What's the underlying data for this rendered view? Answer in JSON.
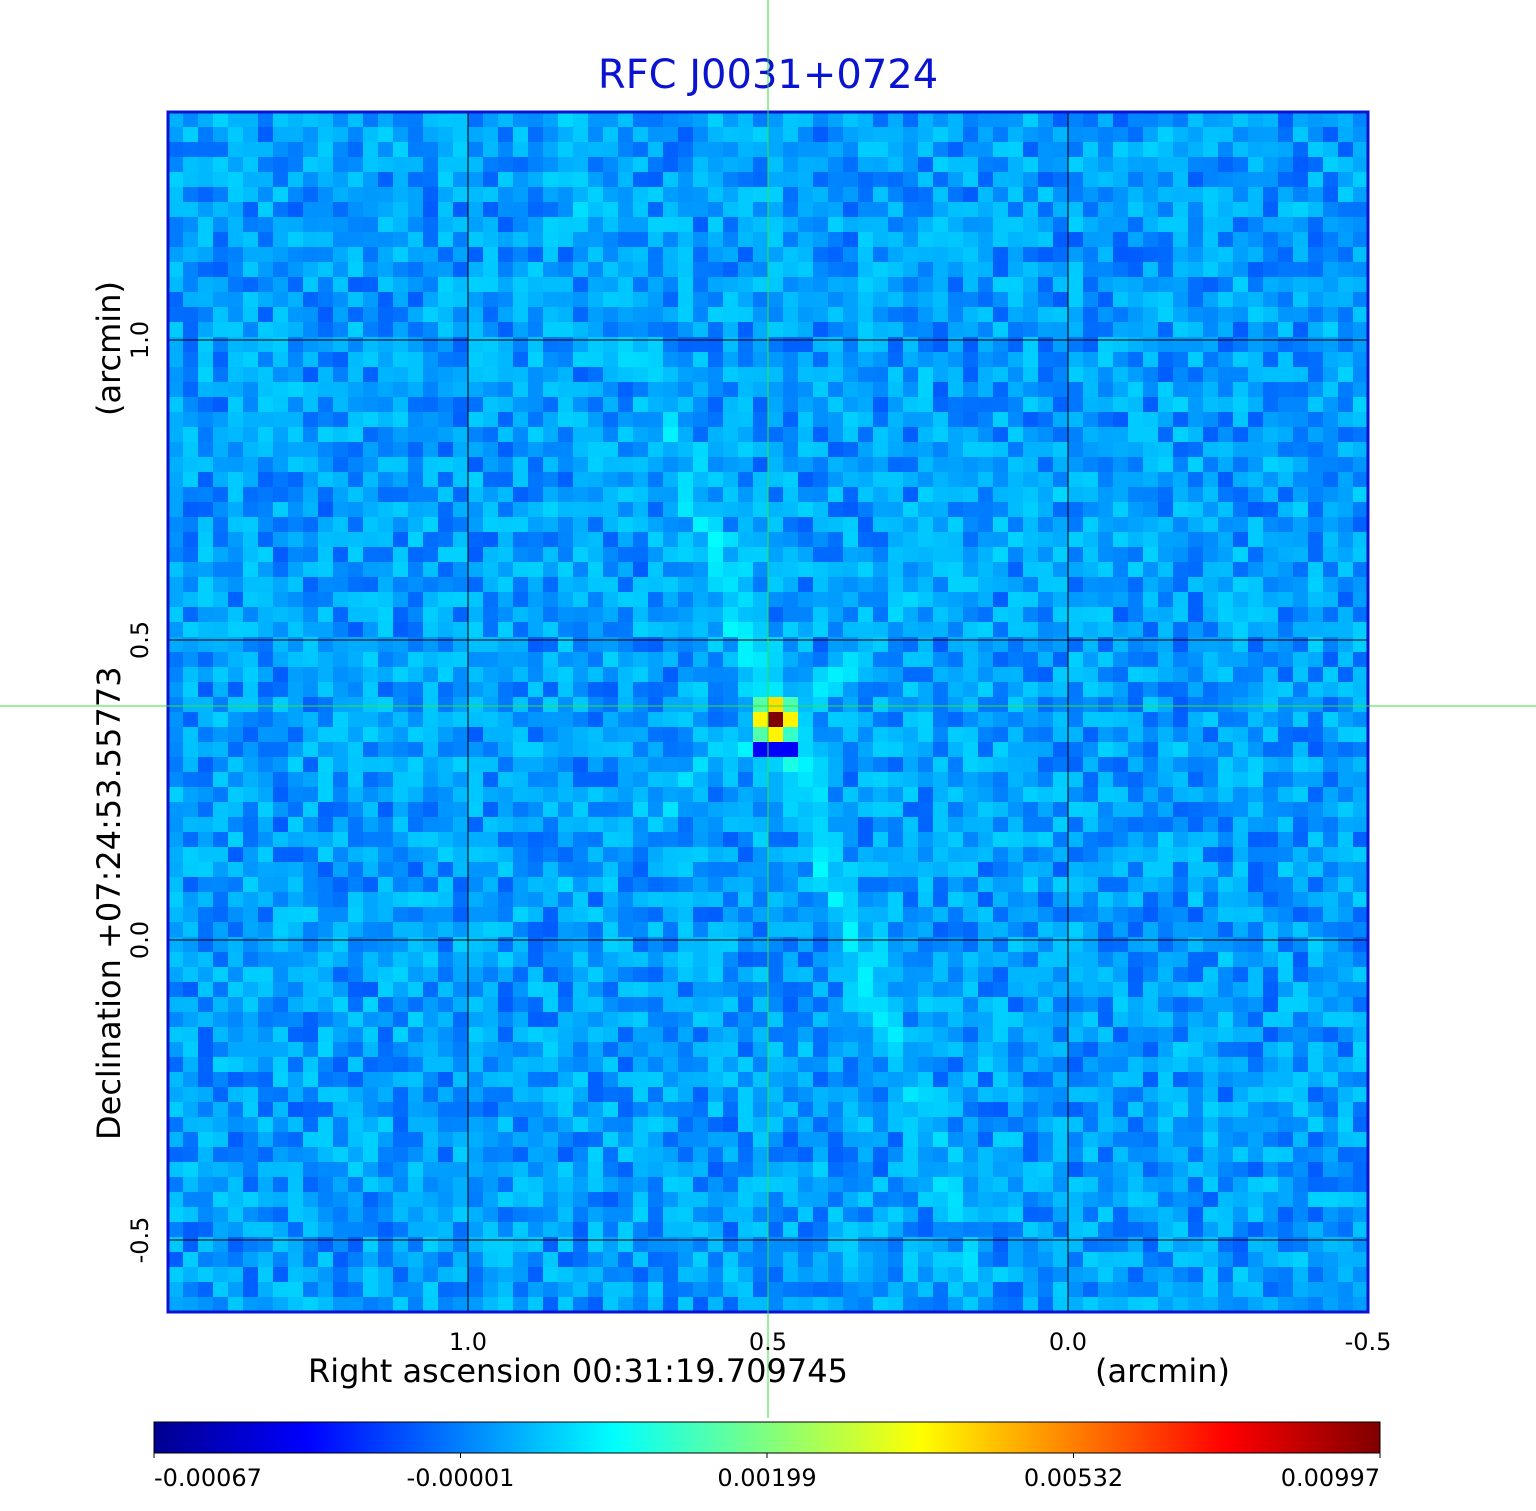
{
  "chart_data": {
    "type": "heatmap",
    "title": "RFC J0031+0724",
    "colormap": "jet",
    "xlabel": "Right ascension  00:31:19.709745",
    "xunit": "(arcmin)",
    "ylabel": "Declination  +07:24:53.55773",
    "yunit": "(arcmin)",
    "xlim": [
      1.5,
      -0.5
    ],
    "ylim": [
      -0.62,
      1.38
    ],
    "x_ticks": [
      "1.0",
      "0.5",
      "0.0",
      "-0.5"
    ],
    "x_tick_values": [
      1.0,
      0.5,
      0.0,
      -0.5
    ],
    "y_ticks": [
      "1.0",
      "0.5",
      "0.0",
      "-0.5"
    ],
    "y_tick_values": [
      1.0,
      0.5,
      0.0,
      -0.5
    ],
    "grid": true,
    "crosshair": {
      "x": 0.5,
      "y": 0.39,
      "color": "#33e533"
    },
    "source_peak": {
      "x": 0.5,
      "y": 0.39,
      "value": 0.00997
    },
    "colorbar": {
      "min": -0.00067,
      "max": 0.00997,
      "tick_labels": [
        "-0.00067",
        "-0.00001",
        "0.00199",
        "0.00532",
        "0.00997"
      ]
    },
    "colors": {
      "frame": "#0a14d0",
      "grid": "#000000",
      "title": "#0a14d0",
      "crosshair": "#33e533"
    }
  }
}
